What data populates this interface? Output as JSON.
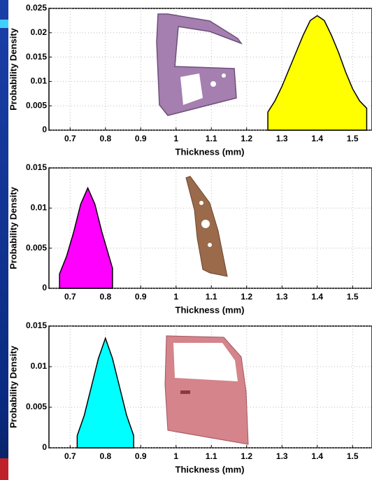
{
  "chart_data": [
    {
      "type": "area",
      "xlabel": "Thickness (mm)",
      "ylabel": "Probability Density",
      "color": "#ffff00",
      "x": [
        1.26,
        1.28,
        1.3,
        1.32,
        1.34,
        1.36,
        1.38,
        1.4,
        1.42,
        1.44,
        1.46,
        1.48,
        1.5,
        1.52,
        1.54
      ],
      "values": [
        0.0037,
        0.006,
        0.009,
        0.0125,
        0.016,
        0.0195,
        0.0225,
        0.0235,
        0.0225,
        0.0195,
        0.016,
        0.012,
        0.0085,
        0.006,
        0.0045
      ],
      "xlim": [
        0.64,
        1.555
      ],
      "xticks": [
        0.7,
        0.8,
        0.9,
        1,
        1.1,
        1.2,
        1.3,
        1.4,
        1.5
      ],
      "ylim": [
        0,
        0.025
      ],
      "yticks": [
        0,
        0.005,
        0.01,
        0.015,
        0.02,
        0.025
      ],
      "grid": true
    },
    {
      "type": "area",
      "xlabel": "Thickness (mm)",
      "ylabel": "Probability Density",
      "color": "#ff00ff",
      "x": [
        0.67,
        0.69,
        0.71,
        0.73,
        0.75,
        0.77,
        0.79,
        0.81,
        0.82
      ],
      "values": [
        0.0018,
        0.004,
        0.007,
        0.0105,
        0.0125,
        0.0105,
        0.007,
        0.004,
        0.0025
      ],
      "xlim": [
        0.64,
        1.555
      ],
      "xticks": [
        0.7,
        0.8,
        0.9,
        1,
        1.1,
        1.2,
        1.3,
        1.4,
        1.5
      ],
      "ylim": [
        0,
        0.015
      ],
      "yticks": [
        0,
        0.005,
        0.01,
        0.015
      ],
      "grid": true
    },
    {
      "type": "area",
      "xlabel": "Thickness (mm)",
      "ylabel": "Probability Density",
      "color": "#00ffff",
      "x": [
        0.72,
        0.74,
        0.76,
        0.78,
        0.8,
        0.82,
        0.84,
        0.86,
        0.88
      ],
      "values": [
        0.0015,
        0.004,
        0.0075,
        0.011,
        0.0135,
        0.011,
        0.0075,
        0.004,
        0.0015
      ],
      "xlim": [
        0.64,
        1.555
      ],
      "xticks": [
        0.7,
        0.8,
        0.9,
        1,
        1.1,
        1.2,
        1.3,
        1.4,
        1.5
      ],
      "ylim": [
        0,
        0.015
      ],
      "yticks": [
        0,
        0.005,
        0.01,
        0.015
      ],
      "grid": true
    }
  ]
}
